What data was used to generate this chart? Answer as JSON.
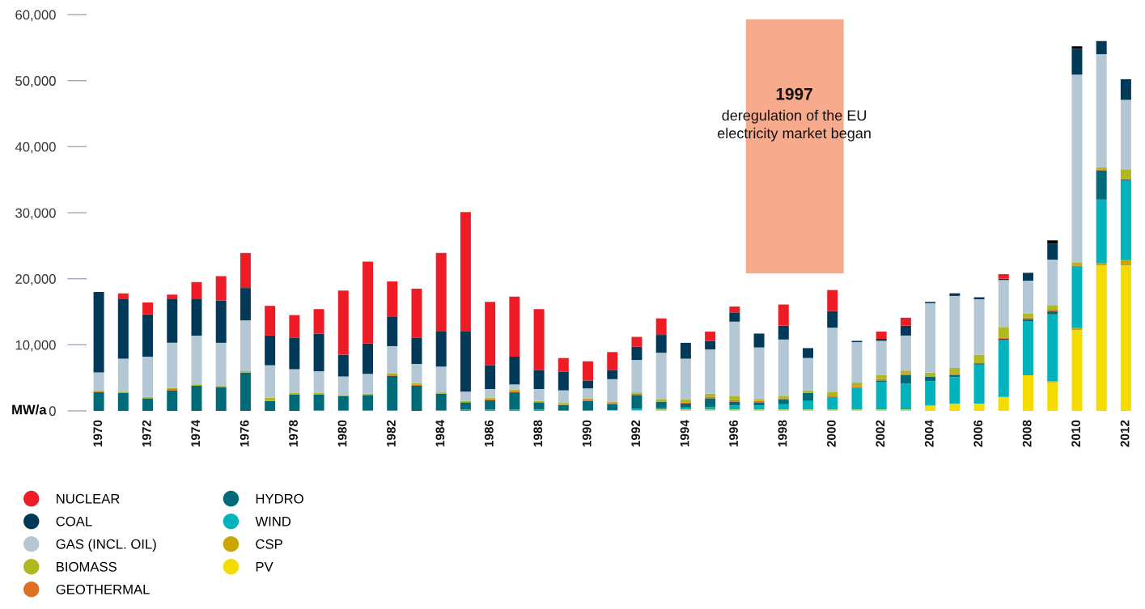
{
  "chart_data": {
    "type": "bar",
    "stacked": true,
    "categories": [
      "1970",
      null,
      "1972",
      null,
      "1974",
      null,
      "1976",
      null,
      "1978",
      null,
      "1980",
      null,
      "1982",
      null,
      "1984",
      null,
      "1986",
      null,
      "1988",
      null,
      "1990",
      null,
      "1992",
      null,
      "1994",
      null,
      "1996",
      null,
      "1998",
      null,
      "2000",
      null,
      "2002",
      null,
      "2004",
      null,
      "2006",
      null,
      "2008",
      null,
      "2010",
      null,
      "2012"
    ],
    "ylabel": "MW/a",
    "ylim": [
      0,
      60000
    ],
    "yticks": [
      0,
      {
        "value": 10000,
        "label": "10,000"
      },
      {
        "value": 20000,
        "label": "20,000"
      },
      {
        "value": 30000,
        "label": "30,000"
      },
      {
        "value": 40000,
        "label": "40,000"
      },
      {
        "value": 50000,
        "label": "50,000"
      },
      {
        "value": 60000,
        "label": "60,000"
      }
    ],
    "grid": false,
    "legend": "bottom left",
    "annotations": [
      "1997",
      "deregulation of the EU\nelectricity market began"
    ],
    "series": [
      {
        "name": "PV",
        "color": "#f5dc00",
        "values": [
          0,
          0,
          0,
          0,
          0,
          0,
          0,
          0,
          0,
          0,
          0,
          0,
          0,
          0,
          0,
          0,
          0,
          0,
          0,
          0,
          0,
          100,
          100,
          200,
          200,
          200,
          200,
          200,
          200,
          200,
          200,
          200,
          200,
          200,
          800,
          1100,
          1100,
          2100,
          5400,
          4300,
          12200,
          22000,
          22000
        ]
      },
      {
        "name": "CSP",
        "color": "#c8a800",
        "values": [
          0,
          0,
          0,
          0,
          0,
          0,
          0,
          0,
          0,
          0,
          0,
          0,
          0,
          0,
          0,
          0,
          0,
          0,
          0,
          0,
          0,
          0,
          0,
          0,
          0,
          0,
          0,
          0,
          0,
          0,
          0,
          0,
          0,
          0,
          0,
          0,
          0,
          0,
          0,
          200,
          400,
          400,
          900
        ]
      },
      {
        "name": "WIND",
        "color": "#00b3bc",
        "values": [
          0,
          0,
          0,
          0,
          0,
          0,
          0,
          0,
          0,
          100,
          100,
          100,
          100,
          0,
          100,
          200,
          200,
          200,
          200,
          100,
          100,
          0,
          200,
          200,
          300,
          400,
          600,
          600,
          800,
          1300,
          1900,
          3300,
          4200,
          3900,
          3700,
          4000,
          5900,
          8600,
          8200,
          10100,
          9200,
          9600,
          11900
        ]
      },
      {
        "name": "HYDRO",
        "color": "#006b78",
        "values": [
          2800,
          2700,
          1900,
          3100,
          3800,
          3600,
          5800,
          1500,
          2500,
          2400,
          2100,
          2300,
          5200,
          3800,
          2500,
          1100,
          1400,
          2600,
          1100,
          800,
          1400,
          900,
          2100,
          1000,
          600,
          1300,
          600,
          500,
          700,
          1200,
          0,
          0,
          200,
          1300,
          700,
          300,
          200,
          200,
          300,
          500,
          0,
          4400,
          200
        ]
      },
      {
        "name": "GEOTHERMAL",
        "color": "#e07020",
        "values": [
          100,
          0,
          0,
          200,
          0,
          0,
          0,
          0,
          0,
          0,
          0,
          0,
          200,
          200,
          0,
          0,
          200,
          200,
          0,
          0,
          200,
          200,
          200,
          0,
          200,
          200,
          200,
          200,
          200,
          0,
          200,
          200,
          200,
          200,
          0,
          200,
          0,
          200,
          200,
          200,
          200,
          200,
          200
        ]
      },
      {
        "name": "BIOMASS",
        "color": "#b0b820",
        "values": [
          200,
          200,
          200,
          200,
          200,
          200,
          200,
          500,
          200,
          200,
          200,
          200,
          200,
          200,
          200,
          200,
          200,
          200,
          200,
          300,
          200,
          200,
          200,
          400,
          400,
          500,
          600,
          300,
          300,
          400,
          600,
          600,
          600,
          500,
          600,
          900,
          1300,
          1600,
          600,
          700,
          500,
          300,
          1400
        ]
      },
      {
        "name": "GAS (INCL. OIL)",
        "color": "#b3c8d4",
        "values": [
          2700,
          5000,
          6100,
          6800,
          7400,
          6500,
          7700,
          4900,
          3600,
          3300,
          2800,
          3000,
          4100,
          2900,
          3900,
          1400,
          1300,
          800,
          1800,
          1900,
          1500,
          3400,
          4900,
          7000,
          6200,
          6700,
          11300,
          7800,
          8600,
          4900,
          9700,
          6100,
          5200,
          5300,
          10500,
          10900,
          8400,
          7100,
          5000,
          6900,
          28400,
          17100,
          10500
        ]
      },
      {
        "name": "COAL",
        "color": "#003a58",
        "values": [
          12200,
          9100,
          6400,
          6700,
          5500,
          6400,
          4900,
          4500,
          4800,
          5700,
          3300,
          4600,
          4500,
          4000,
          5300,
          9100,
          3600,
          4200,
          2900,
          2800,
          1200,
          1400,
          2000,
          2700,
          2400,
          1300,
          1400,
          2100,
          2100,
          1500,
          2500,
          200,
          300,
          1500,
          200,
          400,
          300,
          200,
          1200,
          2400,
          3900,
          2000,
          3100
        ]
      },
      {
        "name": "NUCLEAR",
        "color": "#ee1d25",
        "values": [
          0,
          800,
          1800,
          600,
          2600,
          3700,
          5300,
          4500,
          3400,
          3700,
          9700,
          12400,
          5300,
          7400,
          11900,
          18100,
          9600,
          9100,
          9200,
          2100,
          2900,
          2700,
          1500,
          2500,
          0,
          1400,
          900,
          0,
          3200,
          0,
          3200,
          0,
          1100,
          1200,
          0,
          0,
          0,
          700,
          0,
          0,
          0,
          0,
          0
        ]
      },
      {
        "color": "#000000",
        "values": [
          0,
          0,
          0,
          0,
          0,
          0,
          0,
          0,
          0,
          0,
          0,
          0,
          0,
          0,
          0,
          0,
          0,
          0,
          0,
          0,
          0,
          0,
          0,
          0,
          0,
          0,
          0,
          0,
          0,
          0,
          0,
          0,
          0,
          0,
          0,
          0,
          0,
          0,
          0,
          500,
          400,
          0,
          0
        ]
      }
    ]
  }
}
